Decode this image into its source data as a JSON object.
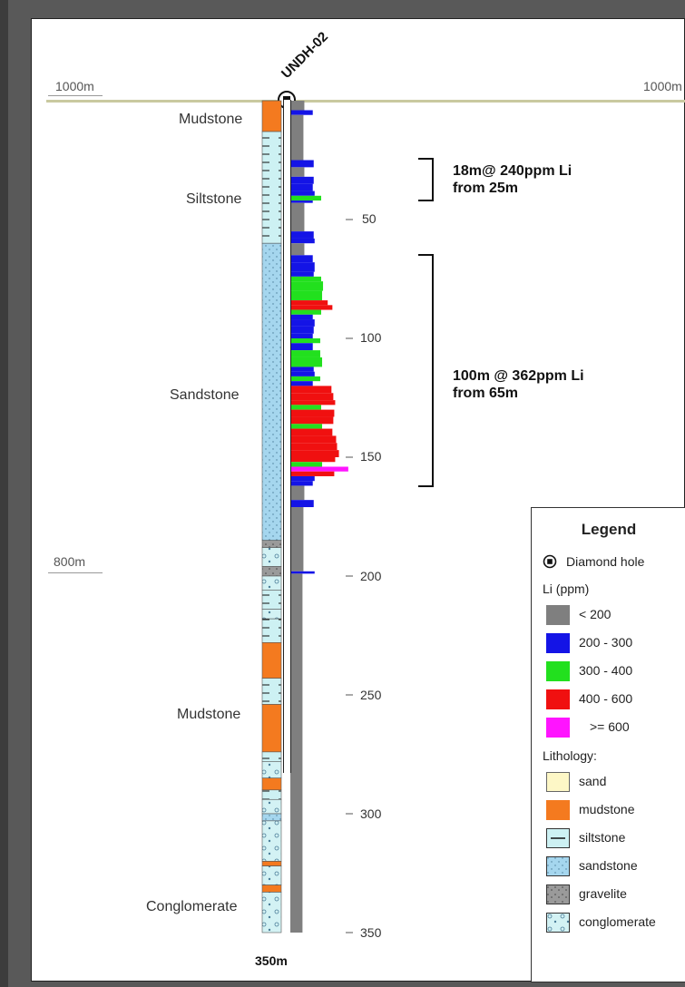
{
  "hole": {
    "name": "UNDH-02"
  },
  "elevations": {
    "top_left": "1000m",
    "top_right": "1000m",
    "mid_left": "800m"
  },
  "end_depth": "350m",
  "depth_ticks": [
    "50",
    "100",
    "150",
    "200",
    "250",
    "300",
    "350"
  ],
  "lithology_labels": {
    "mudstone_top": "Mudstone",
    "siltstone": "Siltstone",
    "sandstone": "Sandstone",
    "mudstone_bottom": "Mudstone",
    "conglomerate": "Conglomerate"
  },
  "intervals": [
    {
      "line1": "18m@ 240ppm Li",
      "line2": "from 25m",
      "from_m": 25,
      "to_m": 43
    },
    {
      "line1": "100m @ 362ppm Li",
      "line2": "from 65m",
      "from_m": 65,
      "to_m": 165
    }
  ],
  "legend": {
    "title": "Legend",
    "hole_label": "Diamond hole",
    "li_header": "Li (ppm)",
    "li_classes": [
      {
        "label": "< 200",
        "color": "#7f7f7f"
      },
      {
        "label": "200 - 300",
        "color": "#1414e6"
      },
      {
        "label": "300 - 400",
        "color": "#22e01e"
      },
      {
        "label": "400 - 600",
        "color": "#f01010"
      },
      {
        "label": ">= 600",
        "color": "#ff14ff"
      }
    ],
    "lith_header": "Lithology:",
    "lith_classes": [
      {
        "label": "sand",
        "color": "#fdf7c6",
        "pattern": "none"
      },
      {
        "label": "mudstone",
        "color": "#f47a1f",
        "pattern": "none"
      },
      {
        "label": "siltstone",
        "color": "#cdf1f3",
        "pattern": "dash"
      },
      {
        "label": "sandstone",
        "color": "#a5d6ee",
        "pattern": "dots"
      },
      {
        "label": "gravelite",
        "color": "#9a9a9a",
        "pattern": "grit"
      },
      {
        "label": "conglomerate",
        "color": "#d3f2f4",
        "pattern": "pebbles"
      }
    ]
  },
  "lithology_column": [
    {
      "unit": "mudstone",
      "from": 0,
      "to": 13
    },
    {
      "unit": "siltstone",
      "from": 13,
      "to": 60
    },
    {
      "unit": "sandstone",
      "from": 60,
      "to": 185
    },
    {
      "unit": "gravelite",
      "from": 185,
      "to": 188
    },
    {
      "unit": "conglomerate",
      "from": 188,
      "to": 196
    },
    {
      "unit": "gravelite",
      "from": 196,
      "to": 200
    },
    {
      "unit": "conglomerate",
      "from": 200,
      "to": 206
    },
    {
      "unit": "siltstone",
      "from": 206,
      "to": 214
    },
    {
      "unit": "conglomerate",
      "from": 214,
      "to": 218
    },
    {
      "unit": "siltstone",
      "from": 218,
      "to": 228
    },
    {
      "unit": "mudstone",
      "from": 228,
      "to": 243
    },
    {
      "unit": "siltstone",
      "from": 243,
      "to": 254
    },
    {
      "unit": "mudstone",
      "from": 254,
      "to": 274
    },
    {
      "unit": "siltstone",
      "from": 274,
      "to": 278
    },
    {
      "unit": "conglomerate",
      "from": 278,
      "to": 285
    },
    {
      "unit": "mudstone",
      "from": 285,
      "to": 290
    },
    {
      "unit": "siltstone",
      "from": 290,
      "to": 294
    },
    {
      "unit": "conglomerate",
      "from": 294,
      "to": 300
    },
    {
      "unit": "sandstone",
      "from": 300,
      "to": 303
    },
    {
      "unit": "conglomerate",
      "from": 303,
      "to": 320
    },
    {
      "unit": "mudstone",
      "from": 320,
      "to": 322
    },
    {
      "unit": "conglomerate",
      "from": 322,
      "to": 330
    },
    {
      "unit": "mudstone",
      "from": 330,
      "to": 333
    },
    {
      "unit": "conglomerate",
      "from": 333,
      "to": 350
    }
  ],
  "li_assays": [
    {
      "from": 0,
      "to": 4,
      "li": 150
    },
    {
      "from": 4,
      "to": 6,
      "li": 240
    },
    {
      "from": 6,
      "to": 25,
      "li": 140
    },
    {
      "from": 25,
      "to": 28,
      "li": 250
    },
    {
      "from": 28,
      "to": 32,
      "li": 150
    },
    {
      "from": 32,
      "to": 35,
      "li": 250
    },
    {
      "from": 35,
      "to": 38,
      "li": 240
    },
    {
      "from": 38,
      "to": 40,
      "li": 260
    },
    {
      "from": 40,
      "to": 42,
      "li": 330
    },
    {
      "from": 42,
      "to": 43,
      "li": 240
    },
    {
      "from": 43,
      "to": 55,
      "li": 150
    },
    {
      "from": 55,
      "to": 58,
      "li": 250
    },
    {
      "from": 58,
      "to": 60,
      "li": 260
    },
    {
      "from": 60,
      "to": 65,
      "li": 150
    },
    {
      "from": 65,
      "to": 68,
      "li": 240
    },
    {
      "from": 68,
      "to": 72,
      "li": 260
    },
    {
      "from": 72,
      "to": 74,
      "li": 250
    },
    {
      "from": 74,
      "to": 76,
      "li": 330
    },
    {
      "from": 76,
      "to": 80,
      "li": 350
    },
    {
      "from": 80,
      "to": 84,
      "li": 340
    },
    {
      "from": 84,
      "to": 86,
      "li": 400
    },
    {
      "from": 86,
      "to": 88,
      "li": 450
    },
    {
      "from": 88,
      "to": 90,
      "li": 330
    },
    {
      "from": 90,
      "to": 92,
      "li": 240
    },
    {
      "from": 92,
      "to": 95,
      "li": 260
    },
    {
      "from": 95,
      "to": 98,
      "li": 250
    },
    {
      "from": 98,
      "to": 100,
      "li": 240
    },
    {
      "from": 100,
      "to": 102,
      "li": 320
    },
    {
      "from": 102,
      "to": 105,
      "li": 240
    },
    {
      "from": 105,
      "to": 108,
      "li": 320
    },
    {
      "from": 108,
      "to": 112,
      "li": 340
    },
    {
      "from": 112,
      "to": 114,
      "li": 250
    },
    {
      "from": 114,
      "to": 116,
      "li": 260
    },
    {
      "from": 116,
      "to": 118,
      "li": 320
    },
    {
      "from": 118,
      "to": 120,
      "li": 240
    },
    {
      "from": 120,
      "to": 123,
      "li": 440
    },
    {
      "from": 123,
      "to": 126,
      "li": 460
    },
    {
      "from": 126,
      "to": 128,
      "li": 480
    },
    {
      "from": 128,
      "to": 130,
      "li": 330
    },
    {
      "from": 130,
      "to": 133,
      "li": 470
    },
    {
      "from": 133,
      "to": 136,
      "li": 460
    },
    {
      "from": 136,
      "to": 138,
      "li": 340
    },
    {
      "from": 138,
      "to": 141,
      "li": 450
    },
    {
      "from": 141,
      "to": 144,
      "li": 490
    },
    {
      "from": 144,
      "to": 147,
      "li": 500
    },
    {
      "from": 147,
      "to": 150,
      "li": 520
    },
    {
      "from": 150,
      "to": 152,
      "li": 480
    },
    {
      "from": 152,
      "to": 154,
      "li": 340
    },
    {
      "from": 154,
      "to": 156,
      "li": 620
    },
    {
      "from": 156,
      "to": 158,
      "li": 470
    },
    {
      "from": 158,
      "to": 160,
      "li": 260
    },
    {
      "from": 160,
      "to": 162,
      "li": 240
    },
    {
      "from": 162,
      "to": 168,
      "li": 150
    },
    {
      "from": 168,
      "to": 171,
      "li": 250
    },
    {
      "from": 171,
      "to": 198,
      "li": 140
    },
    {
      "from": 198,
      "to": 199,
      "li": 260
    },
    {
      "from": 199,
      "to": 350,
      "li": 130
    }
  ]
}
